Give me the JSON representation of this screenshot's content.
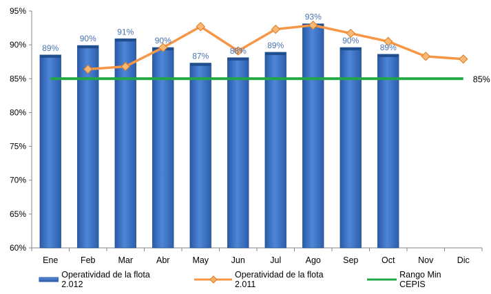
{
  "chart_data": {
    "type": "bar",
    "categories": [
      "Ene",
      "Feb",
      "Mar",
      "Abr",
      "May",
      "Jun",
      "Jul",
      "Ago",
      "Sep",
      "Oct",
      "Nov",
      "Dic"
    ],
    "ylim": [
      0.6,
      0.95
    ],
    "yticks": [
      "60%",
      "65%",
      "70%",
      "75%",
      "80%",
      "85%",
      "90%",
      "95%"
    ],
    "grid": false,
    "legend_position": "bottom",
    "series": [
      {
        "name": "Operatividad de la flota 2.012",
        "type": "bar",
        "color": "#3a6fc4",
        "values": [
          0.885,
          0.899,
          0.909,
          0.896,
          0.873,
          0.881,
          0.889,
          0.931,
          0.896,
          0.886,
          null,
          null
        ],
        "data_labels": [
          "89%",
          "90%",
          "91%",
          "90%",
          "87%",
          "88%",
          "89%",
          "93%",
          "90%",
          "89%",
          "",
          ""
        ]
      },
      {
        "name": "Operatividad de la flota 2.011",
        "type": "line",
        "color": "#f79646",
        "values": [
          null,
          0.864,
          0.868,
          0.896,
          0.927,
          0.891,
          0.923,
          0.929,
          0.917,
          0.905,
          0.883,
          0.879
        ]
      },
      {
        "name": "Rango Min CEPIS",
        "type": "line",
        "color": "#21a744",
        "values": [
          0.85,
          0.85,
          0.85,
          0.85,
          0.85,
          0.85,
          0.85,
          0.85,
          0.85,
          0.85,
          0.85,
          0.85
        ],
        "end_label": "85%"
      }
    ]
  }
}
